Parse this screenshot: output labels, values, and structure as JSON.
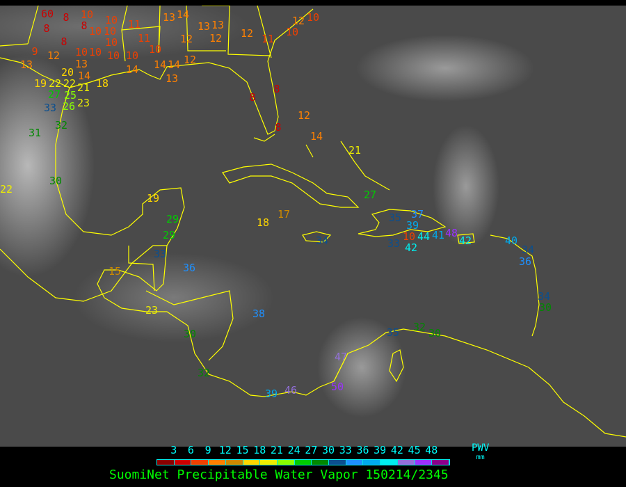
{
  "title": "SuomiNet Precipitable Water Vapor 150214/2345",
  "legend": {
    "unit_top": "PWV",
    "unit_bottom": "mm",
    "ticks": [
      "3",
      "6",
      "9",
      "12",
      "15",
      "18",
      "21",
      "24",
      "27",
      "30",
      "33",
      "36",
      "39",
      "42",
      "45",
      "48"
    ],
    "colors": [
      "#8b0000",
      "#cc0000",
      "#f04000",
      "#ff8000",
      "#cc8800",
      "#ffd700",
      "#eeee00",
      "#88ff00",
      "#00cc00",
      "#008800",
      "#0b4f8f",
      "#1e90ff",
      "#00aaee",
      "#00eeee",
      "#9370db",
      "#9b30ff",
      "#8b008b"
    ]
  },
  "coastline_color": "#ffff00",
  "stations": [
    "60",
    "8",
    "10",
    "8",
    "8",
    "10",
    "10",
    "10",
    "11",
    "8",
    "9",
    "12",
    "13",
    "10",
    "10",
    "10",
    "10",
    "10",
    "11",
    "10",
    "13",
    "14",
    "13",
    "13",
    "12",
    "12",
    "12",
    "11",
    "10",
    "12",
    "10",
    "13",
    "14",
    "14",
    "14",
    "14",
    "12",
    "13",
    "19",
    "22",
    "22",
    "20",
    "21",
    "18",
    "27",
    "25",
    "26",
    "23",
    "33",
    "32",
    "31",
    "8",
    "8",
    "8",
    "12",
    "14",
    "21",
    "27",
    "30",
    "22",
    "19",
    "29",
    "29",
    "33",
    "36",
    "15",
    "18",
    "17",
    "34",
    "23",
    "30",
    "38",
    "32",
    "39",
    "46",
    "50",
    "47",
    "35",
    "37",
    "39",
    "10",
    "42",
    "44",
    "41",
    "48",
    "42",
    "33",
    "40",
    "36",
    "34",
    "34",
    "30",
    "35",
    "32",
    "30"
  ]
}
